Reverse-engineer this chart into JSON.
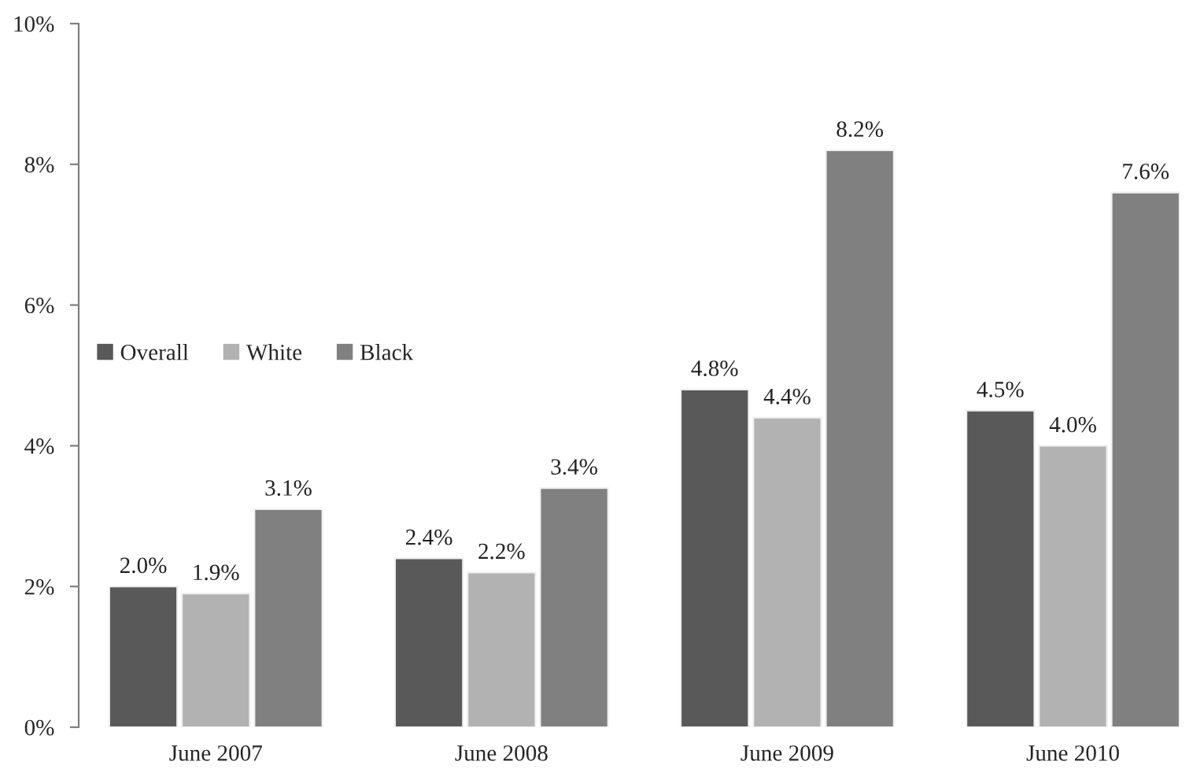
{
  "chart_data": {
    "type": "bar",
    "categories": [
      "June 2007",
      "June 2008",
      "June 2009",
      "June 2010"
    ],
    "series": [
      {
        "name": "Overall",
        "color": "#595959",
        "values": [
          2.0,
          2.4,
          4.8,
          4.5
        ],
        "value_labels": [
          "2.0%",
          "2.4%",
          "4.8%",
          "4.5%"
        ]
      },
      {
        "name": "White",
        "color": "#b2b2b2",
        "values": [
          1.9,
          2.2,
          4.4,
          4.0
        ],
        "value_labels": [
          "1.9%",
          "2.2%",
          "4.4%",
          "4.0%"
        ]
      },
      {
        "name": "Black",
        "color": "#808080",
        "values": [
          3.1,
          3.4,
          8.2,
          7.6
        ],
        "value_labels": [
          "3.1%",
          "3.4%",
          "8.2%",
          "7.6%"
        ]
      }
    ],
    "ylim": [
      0,
      10
    ],
    "yticks": [
      {
        "value": 0,
        "label": "0%"
      },
      {
        "value": 2,
        "label": "2%"
      },
      {
        "value": 4,
        "label": "4%"
      },
      {
        "value": 6,
        "label": "6%"
      },
      {
        "value": 8,
        "label": "8%"
      },
      {
        "value": 10,
        "label": "10%"
      }
    ],
    "legend": "left"
  }
}
